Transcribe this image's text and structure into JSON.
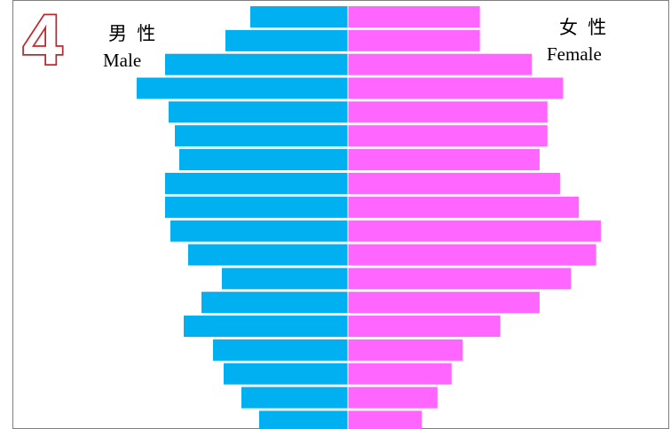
{
  "badge": {
    "number": "4",
    "color": "#c0262b"
  },
  "labels": {
    "male_cn": "男 性",
    "male_en": "Male",
    "female_cn": "女 性",
    "female_en": "Female"
  },
  "chart_data": {
    "type": "bar",
    "subtype": "population-pyramid",
    "orientation": "horizontal",
    "grid": false,
    "legend": "none",
    "colors": {
      "male": "#00b0f0",
      "female": "#ff66ff"
    },
    "xlim": [
      -240,
      320
    ],
    "series": [
      {
        "name": "Male",
        "values": [
          110,
          138,
          206,
          238,
          202,
          195,
          190,
          206,
          206,
          200,
          180,
          142,
          165,
          185,
          152,
          140,
          120,
          100
        ]
      },
      {
        "name": "Female",
        "values": [
          168,
          168,
          234,
          274,
          254,
          254,
          244,
          270,
          294,
          322,
          316,
          284,
          244,
          194,
          146,
          132,
          114,
          94
        ]
      }
    ]
  }
}
